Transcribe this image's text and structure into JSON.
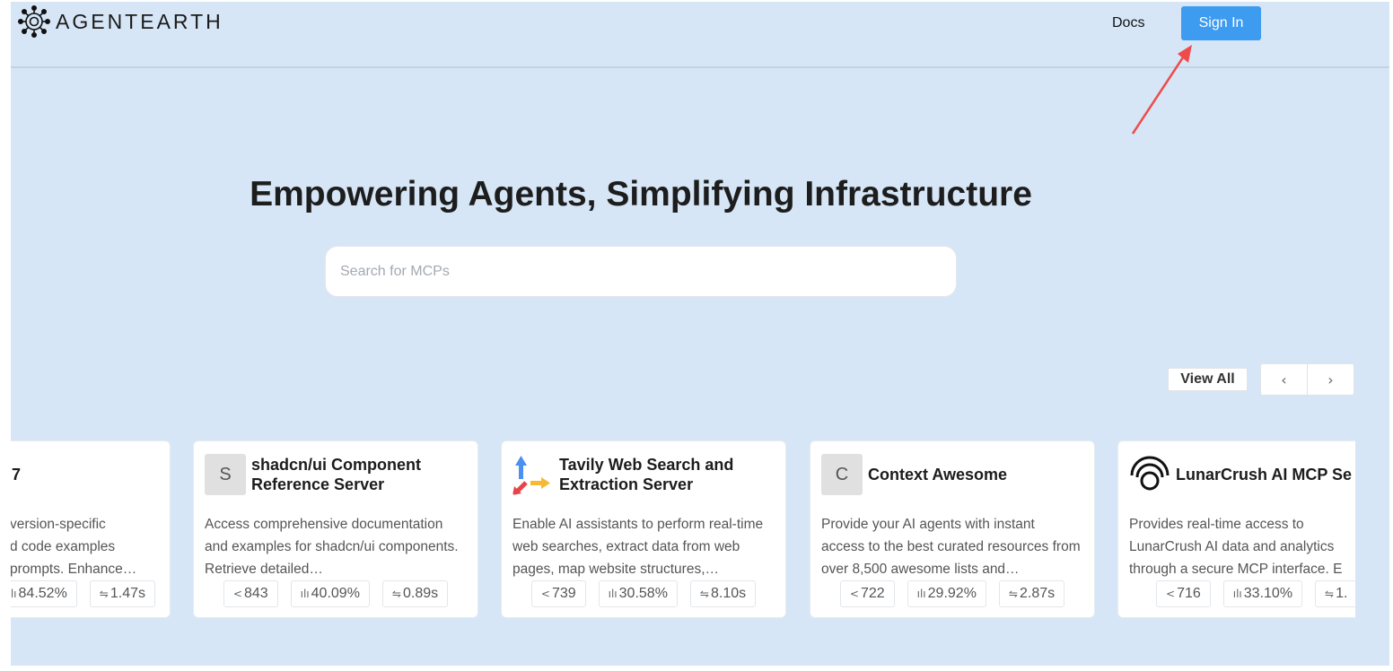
{
  "header": {
    "brand": "AGENTEARTH",
    "docs_label": "Docs",
    "signin_label": "Sign In",
    "accent": "#3d9bf0"
  },
  "hero": {
    "title": "Empowering Agents, Simplifying Infrastructure",
    "search_placeholder": "Search for MCPs"
  },
  "carousel": {
    "view_all_label": "View All",
    "prev_icon": "‹",
    "next_icon": "›"
  },
  "cards": [
    {
      "title": "7",
      "icon": "partial",
      "description": "version-specific\nd code examples\nprompts. Enhance…",
      "calls": "",
      "success": "84.52%",
      "latency": "1.47s"
    },
    {
      "title": "shadcn/ui Component\nReference Server",
      "icon_letter": "S",
      "description": "Access comprehensive documentation and examples for shadcn/ui components. Retrieve detailed…",
      "calls": "843",
      "success": "40.09%",
      "latency": "0.89s"
    },
    {
      "title": "Tavily Web Search and\nExtraction Server",
      "icon": "tavily-logo",
      "description": "Enable AI assistants to perform real-time web searches, extract data from web pages, map website structures,…",
      "calls": "739",
      "success": "30.58%",
      "latency": "8.10s"
    },
    {
      "title": "Context Awesome",
      "icon_letter": "C",
      "description": "Provide your AI agents with instant access to the best curated resources from over 8,500 awesome lists and…",
      "calls": "722",
      "success": "29.92%",
      "latency": "2.87s"
    },
    {
      "title": "LunarCrush AI MCP Se",
      "icon": "lunarcrush-logo",
      "description": "Provides real-time access to LunarCrush AI data and analytics through a secure MCP interface. E",
      "calls": "716",
      "success": "33.10%",
      "latency": "1."
    }
  ],
  "stat_icons": {
    "calls": "share-icon",
    "success": "bar-chart-icon",
    "latency": "swap-icon"
  }
}
